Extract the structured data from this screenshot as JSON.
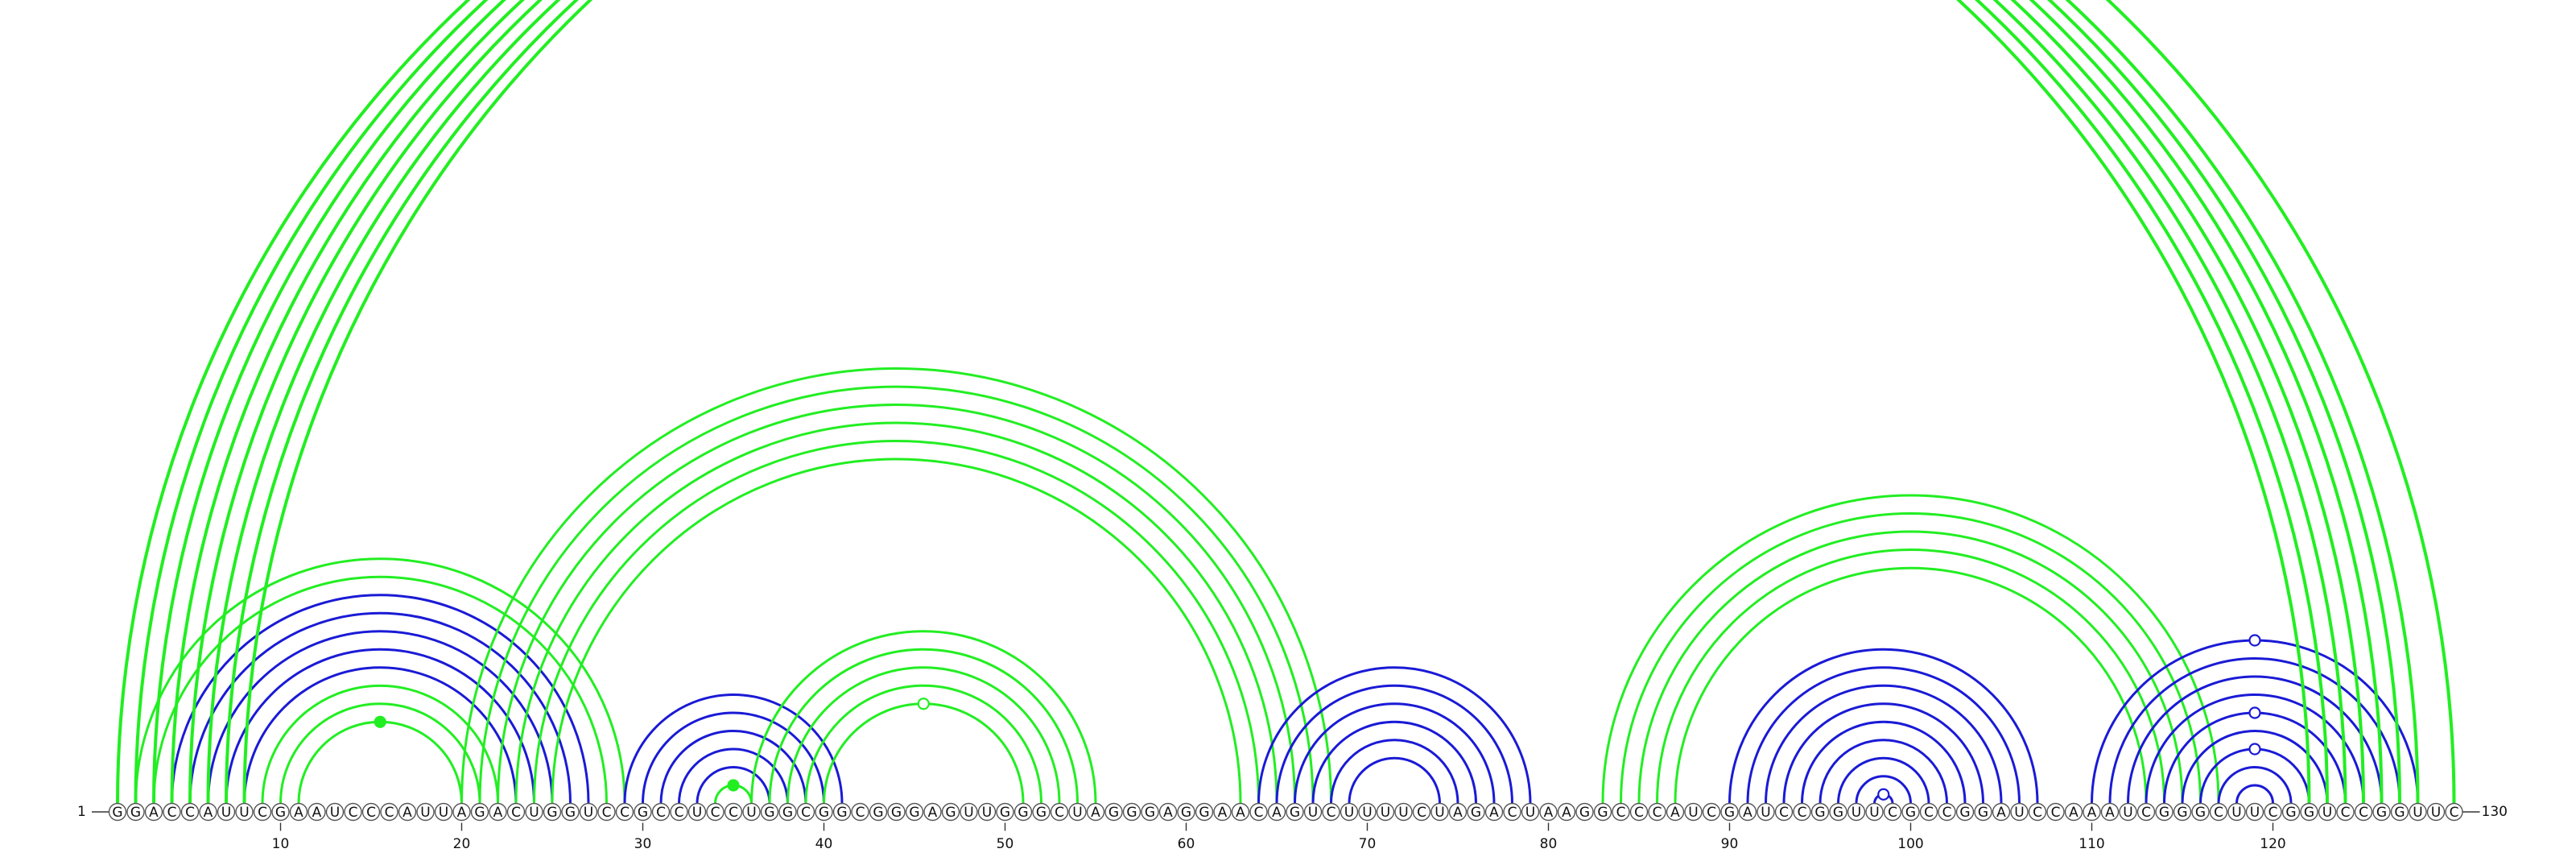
{
  "diagram": {
    "type": "rna-arc-diagram",
    "start_label": "1",
    "end_label": "130",
    "sequence": "GGACCAUUCGAAUCCCAUUAGACUGGUCCGCCUCCUGGCGGCGGGAGUUGGGCUAGGGAGGAACAGUCUUUUCUAGACUAAGGCCCAUCGAUCCGGUUCGCCGGAUCCAAAUCGGGCUUCGGUCCGGUUC",
    "tick_labels": [
      "10",
      "20",
      "30",
      "40",
      "50",
      "60",
      "70",
      "80",
      "90",
      "100",
      "110",
      "120"
    ],
    "tick_positions": [
      10,
      20,
      30,
      40,
      50,
      60,
      70,
      80,
      90,
      100,
      110,
      120
    ],
    "colors": {
      "green": "#22ee22",
      "blue": "#1a1ad6",
      "backbone": "#333333"
    },
    "helices": [
      {
        "color": "blue",
        "pairs": [
          [
            4,
            27
          ],
          [
            5,
            26
          ],
          [
            6,
            25
          ],
          [
            7,
            24
          ],
          [
            8,
            23
          ]
        ]
      },
      {
        "color": "green",
        "pairs": [
          [
            9,
            22
          ],
          [
            10,
            21
          ],
          [
            11,
            20
          ]
        ]
      },
      {
        "color": "green",
        "pairs": [
          [
            2,
            29
          ],
          [
            3,
            28
          ]
        ]
      },
      {
        "color": "blue",
        "pairs": [
          [
            29,
            41
          ],
          [
            30,
            40
          ],
          [
            31,
            39
          ],
          [
            32,
            38
          ],
          [
            33,
            37
          ]
        ]
      },
      {
        "color": "green",
        "pairs": [
          [
            34,
            36
          ]
        ]
      },
      {
        "color": "green",
        "pairs": [
          [
            36,
            55
          ],
          [
            37,
            54
          ],
          [
            38,
            53
          ],
          [
            39,
            52
          ],
          [
            40,
            51
          ]
        ]
      },
      {
        "color": "green",
        "pairs": [
          [
            20,
            68
          ],
          [
            21,
            67
          ],
          [
            22,
            66
          ],
          [
            23,
            65
          ],
          [
            24,
            64
          ],
          [
            25,
            63
          ]
        ]
      },
      {
        "color": "blue",
        "pairs": [
          [
            64,
            79
          ],
          [
            65,
            78
          ],
          [
            66,
            77
          ],
          [
            67,
            76
          ],
          [
            68,
            75
          ],
          [
            69,
            74
          ]
        ]
      },
      {
        "color": "blue",
        "pairs": [
          [
            90,
            107
          ],
          [
            91,
            106
          ],
          [
            92,
            105
          ],
          [
            93,
            104
          ],
          [
            94,
            103
          ],
          [
            95,
            102
          ],
          [
            96,
            101
          ],
          [
            97,
            100
          ],
          [
            98,
            99
          ]
        ]
      },
      {
        "color": "green",
        "pairs": [
          [
            83,
            117
          ],
          [
            84,
            116
          ],
          [
            85,
            115
          ],
          [
            86,
            114
          ],
          [
            87,
            113
          ]
        ]
      },
      {
        "color": "blue",
        "pairs": [
          [
            110,
            128
          ],
          [
            111,
            127
          ],
          [
            112,
            126
          ],
          [
            113,
            125
          ],
          [
            114,
            124
          ],
          [
            115,
            123
          ],
          [
            116,
            122
          ],
          [
            117,
            121
          ],
          [
            118,
            120
          ]
        ]
      },
      {
        "color": "green",
        "pairs": [
          [
            1,
            122
          ],
          [
            2,
            123
          ],
          [
            3,
            124
          ],
          [
            4,
            125
          ],
          [
            5,
            126
          ],
          [
            6,
            127
          ],
          [
            7,
            128
          ],
          [
            8,
            130
          ]
        ]
      }
    ],
    "markers": [
      {
        "pair": [
          1,
          130
        ],
        "color": "green",
        "filled": false
      },
      {
        "pair": [
          11,
          20
        ],
        "color": "green",
        "filled": true
      },
      {
        "pair": [
          40,
          51
        ],
        "color": "green",
        "filled": false
      },
      {
        "pair": [
          34,
          36
        ],
        "color": "green",
        "filled": true
      },
      {
        "pair": [
          110,
          128
        ],
        "color": "blue",
        "filled": false
      },
      {
        "pair": [
          114,
          124
        ],
        "color": "blue",
        "filled": false
      },
      {
        "pair": [
          116,
          122
        ],
        "color": "blue",
        "filled": false
      },
      {
        "pair": [
          98,
          99
        ],
        "color": "blue",
        "filled": false
      }
    ]
  }
}
